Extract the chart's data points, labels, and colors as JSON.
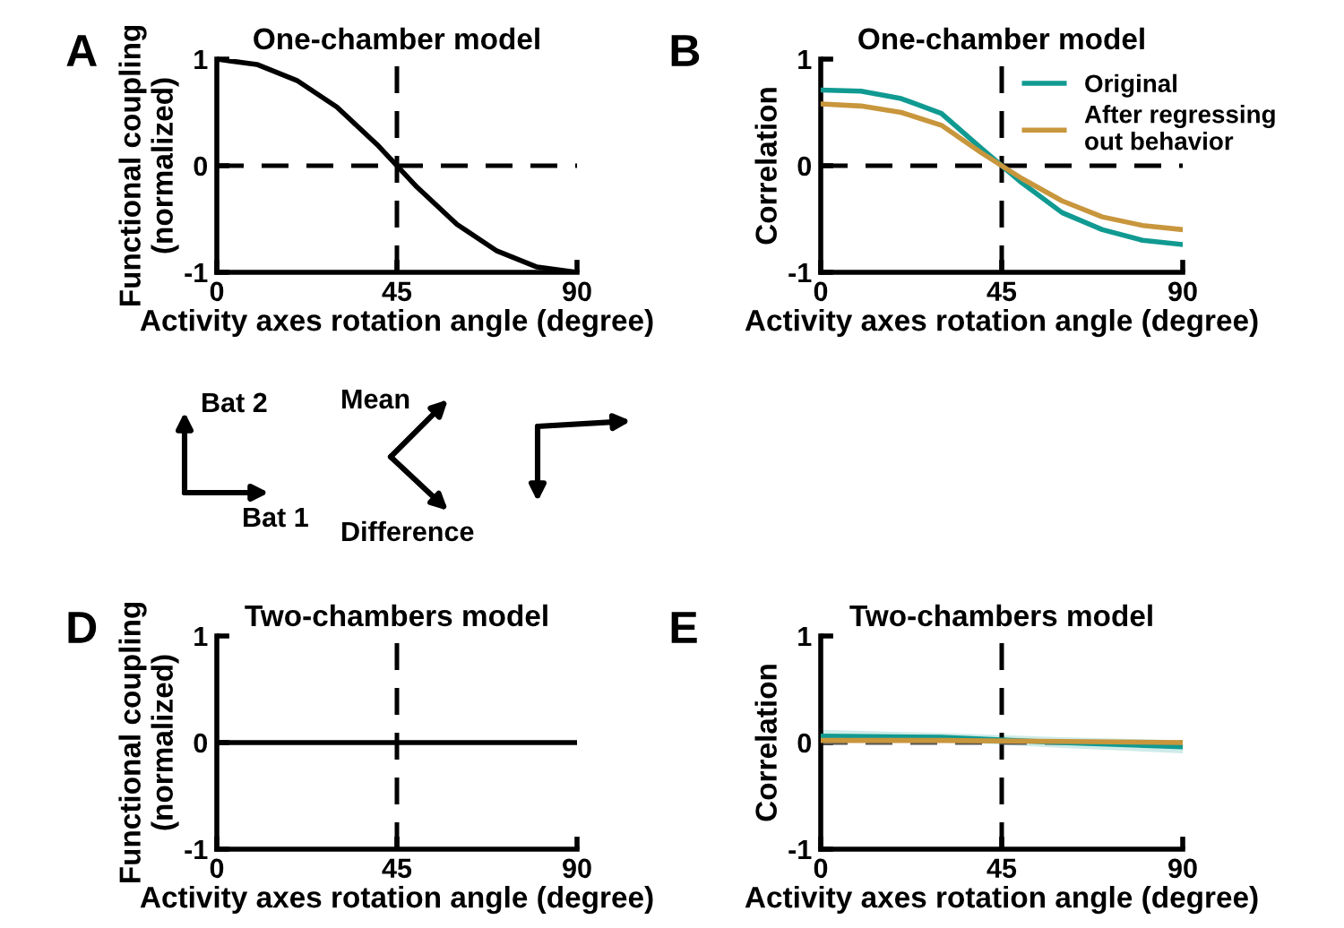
{
  "chart_data": [
    {
      "type": "line",
      "title": "One-chamber model",
      "xlabel": "Activity axes rotation angle (degree)",
      "ylabel": "Functional coupling\n(normalized)",
      "annotations": [
        "A"
      ],
      "x": [
        0,
        10,
        20,
        30,
        40,
        50,
        60,
        70,
        80,
        90
      ],
      "xlim": [
        0,
        90
      ],
      "xticks": [
        0,
        45,
        90
      ],
      "ylim": [
        -1,
        1
      ],
      "yticks": [
        -1,
        0,
        1
      ],
      "grid": false,
      "legend": false,
      "series": [
        {
          "color": "#000000",
          "values": [
            1,
            0.95,
            0.8,
            0.55,
            0.2,
            -0.2,
            -0.55,
            -0.8,
            -0.95,
            -1
          ]
        }
      ],
      "ref_lines": [
        {
          "axis": "x",
          "value": 45,
          "line_style": "dashed",
          "color": "#000000"
        },
        {
          "axis": "y",
          "value": 0,
          "line_style": "dashed",
          "color": "#000000"
        }
      ]
    },
    {
      "type": "line",
      "title": "One-chamber model",
      "xlabel": "Activity axes rotation angle (degree)",
      "ylabel": "Correlation",
      "annotations": [
        "B"
      ],
      "x": [
        0,
        10,
        20,
        30,
        40,
        50,
        60,
        70,
        80,
        90
      ],
      "xlim": [
        0,
        90
      ],
      "xticks": [
        0,
        45,
        90
      ],
      "ylim": [
        -1,
        1
      ],
      "yticks": [
        -1,
        0,
        1
      ],
      "grid": false,
      "legend": "top right",
      "series": [
        {
          "name": "Original",
          "color": "#109a91",
          "values": [
            0.71,
            0.7,
            0.63,
            0.49,
            0.16,
            -0.16,
            -0.44,
            -0.6,
            -0.7,
            -0.74
          ]
        },
        {
          "name": "After regressing\nout behavior",
          "color": "#c8963c",
          "values": [
            0.58,
            0.56,
            0.5,
            0.38,
            0.12,
            -0.12,
            -0.33,
            -0.48,
            -0.56,
            -0.6
          ]
        }
      ],
      "ref_lines": [
        {
          "axis": "x",
          "value": 45,
          "line_style": "dashed",
          "color": "#000000"
        },
        {
          "axis": "y",
          "value": 0,
          "line_style": "dashed",
          "color": "#000000"
        }
      ]
    },
    {
      "type": "other",
      "annotations": [
        "Bat 2",
        "Bat 1",
        "Mean",
        "Difference"
      ]
    },
    {
      "type": "line",
      "title": "Two-chambers model",
      "xlabel": "Activity axes rotation angle (degree)",
      "ylabel": "Functional coupling\n(normalized)",
      "annotations": [
        "D"
      ],
      "x": [
        0,
        90
      ],
      "xlim": [
        0,
        90
      ],
      "xticks": [
        0,
        45,
        90
      ],
      "ylim": [
        -1,
        1
      ],
      "yticks": [
        -1,
        0,
        1
      ],
      "grid": false,
      "legend": false,
      "series": [
        {
          "color": "#000000",
          "values": [
            0,
            0
          ]
        }
      ],
      "ref_lines": [
        {
          "axis": "x",
          "value": 45,
          "line_style": "dashed",
          "color": "#000000"
        }
      ]
    },
    {
      "type": "line",
      "title": "Two-chambers model",
      "xlabel": "Activity axes rotation angle (degree)",
      "ylabel": "Correlation",
      "annotations": [
        "E"
      ],
      "x": [
        0,
        30,
        60,
        90
      ],
      "xlim": [
        0,
        90
      ],
      "xticks": [
        0,
        45,
        90
      ],
      "ylim": [
        -1,
        1
      ],
      "yticks": [
        -1,
        0,
        1
      ],
      "grid": false,
      "legend": false,
      "series": [
        {
          "color": "#109a91",
          "values": [
            0.06,
            0.05,
            0.0,
            -0.04
          ],
          "lower": [
            0.0,
            0.01,
            -0.05,
            -0.1
          ],
          "upper": [
            0.12,
            0.09,
            0.05,
            0.02
          ]
        },
        {
          "color": "#c8963c",
          "values": [
            0.02,
            0.02,
            0.01,
            0.0
          ]
        }
      ],
      "ref_lines": [
        {
          "axis": "x",
          "value": 45,
          "line_style": "dashed",
          "color": "#000000"
        },
        {
          "axis": "y",
          "value": 0,
          "line_style": "dashed",
          "color": "#555555"
        }
      ]
    }
  ]
}
